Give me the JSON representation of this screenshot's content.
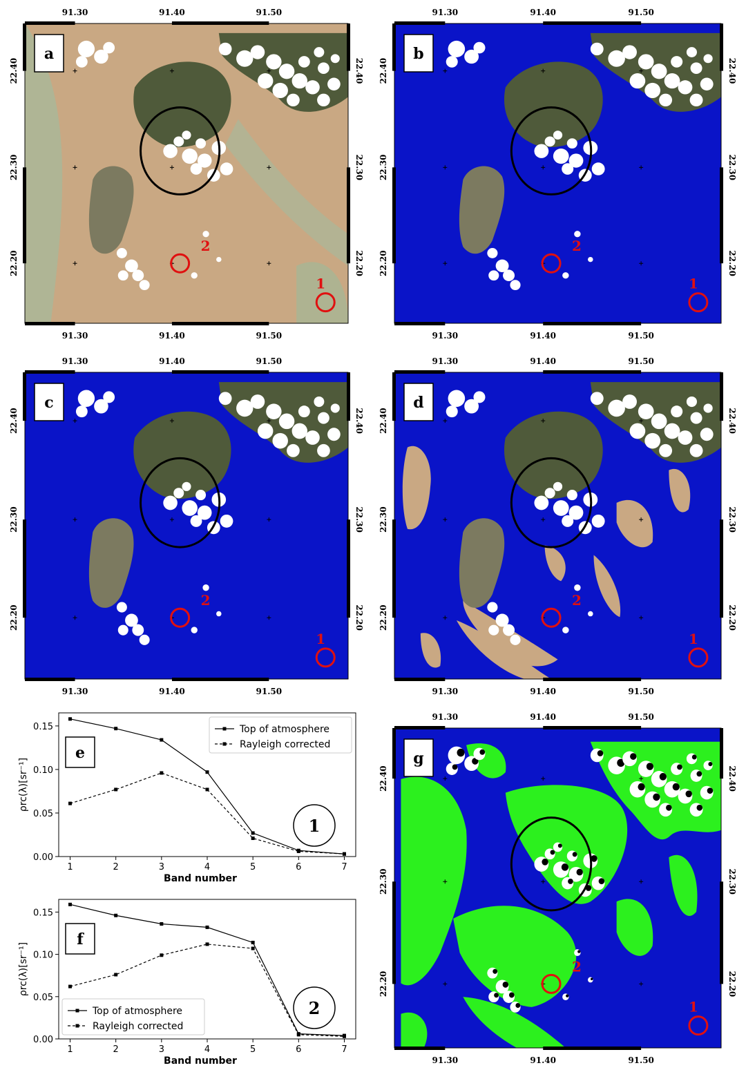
{
  "map_panels": [
    {
      "id": "a",
      "label": "a",
      "style": "true-color"
    },
    {
      "id": "b",
      "label": "b",
      "style": "water-mask"
    },
    {
      "id": "c",
      "label": "c",
      "style": "water-mask"
    },
    {
      "id": "d",
      "label": "d",
      "style": "water-mask-turbid"
    },
    {
      "id": "g",
      "label": "g",
      "style": "classified"
    }
  ],
  "map_axes": {
    "lon_ticks": [
      "91.30",
      "91.40",
      "91.50"
    ],
    "lat_ticks": [
      "22.40",
      "22.30",
      "22.20"
    ]
  },
  "markers": {
    "point1": "1",
    "point2": "2"
  },
  "colors": {
    "water": "#0a14c8",
    "land_green": "#2cf01e",
    "sediment": "#c9a883",
    "vegetation": "#4f5a3a",
    "cloud": "#ffffff",
    "marker": "#e01010"
  },
  "chart_data": [
    {
      "type": "line",
      "panel_label": "e",
      "point_label": "1",
      "x": [
        1,
        2,
        3,
        4,
        5,
        6,
        7
      ],
      "xlabel": "Band number",
      "ylabel": "ρrc(λ)[sr⁻¹]",
      "xticks": [
        "1",
        "2",
        "3",
        "4",
        "5",
        "6",
        "7"
      ],
      "yticks": [
        "0.00",
        "0.05",
        "0.10",
        "0.15"
      ],
      "ylim": [
        0,
        0.165
      ],
      "legend_position": "top-right",
      "series": [
        {
          "name": "Top of atmosphere",
          "style": "solid",
          "values": [
            0.158,
            0.147,
            0.134,
            0.097,
            0.027,
            0.007,
            0.003
          ]
        },
        {
          "name": "Rayleigh corrected",
          "style": "dashed",
          "values": [
            0.061,
            0.077,
            0.096,
            0.077,
            0.021,
            0.006,
            0.003
          ]
        }
      ]
    },
    {
      "type": "line",
      "panel_label": "f",
      "point_label": "2",
      "x": [
        1,
        2,
        3,
        4,
        5,
        6,
        7
      ],
      "xlabel": "Band number",
      "ylabel": "ρrc(λ)[sr⁻¹]",
      "xticks": [
        "1",
        "2",
        "3",
        "4",
        "5",
        "6",
        "7"
      ],
      "yticks": [
        "0.00",
        "0.05",
        "0.10",
        "0.15"
      ],
      "ylim": [
        0,
        0.165
      ],
      "legend_position": "bottom-left",
      "series": [
        {
          "name": "Top of atmosphere",
          "style": "solid",
          "values": [
            0.159,
            0.146,
            0.136,
            0.132,
            0.114,
            0.006,
            0.004
          ]
        },
        {
          "name": "Rayleigh corrected",
          "style": "dashed",
          "values": [
            0.062,
            0.076,
            0.099,
            0.112,
            0.107,
            0.005,
            0.003
          ]
        }
      ]
    }
  ]
}
